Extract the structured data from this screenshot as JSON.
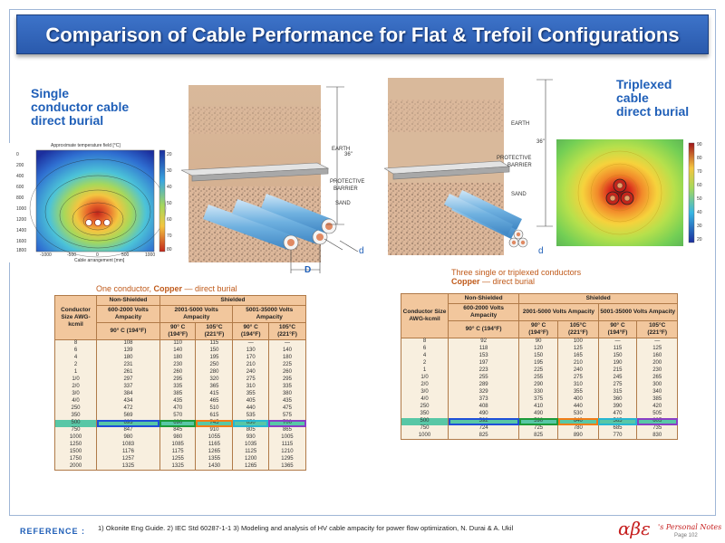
{
  "title": "Comparison of Cable Performance for Flat & Trefoil Configurations",
  "left_heading": [
    "Single",
    "conductor cable",
    "direct burial"
  ],
  "right_heading": [
    "Triplexed",
    "cable",
    "direct burial"
  ],
  "flat_heatmap": {
    "title": "Approximate temperature field [°C]",
    "xlabel": "Cable arrangement [mm]",
    "yticks": [
      "0",
      "200",
      "400",
      "600",
      "800",
      "1000",
      "1200",
      "1400",
      "1600",
      "1800"
    ],
    "xticks": [
      "-1000",
      "-500",
      "0",
      "500",
      "1000"
    ],
    "cbar_ticks": [
      "20",
      "30",
      "40",
      "50",
      "60",
      "70",
      "80"
    ]
  },
  "trefoil_heatmap": {
    "cbar_ticks": [
      "20",
      "30",
      "40",
      "50",
      "60",
      "70",
      "80",
      "90"
    ]
  },
  "flat_diagram": {
    "depth": "36\"",
    "earth": "EARTH",
    "barrier_1": "PROTECTIVE",
    "barrier_2": "BARRIER",
    "sand": "SAND",
    "d_label": "d",
    "D_label": "D"
  },
  "trefoil_diagram": {
    "depth": "36\"",
    "earth": "EARTH",
    "barrier_1": "PROTECTIVE",
    "barrier_2": "BARRIER",
    "sand": "SAND",
    "d_label": "d"
  },
  "left_table": {
    "caption_prefix": "One conductor, ",
    "caption_bold": "Copper",
    "caption_suffix": " — direct burial",
    "h_non_shielded": "Non-Shielded",
    "h_shielded": "Shielded",
    "h_conductor": "Conductor Size AWG-kcmil",
    "h_v1": "600-2000 Volts Ampacity",
    "h_v2": "2001-5000 Volts Ampacity",
    "h_v3": "5001-35000 Volts Ampacity",
    "t90": "90° C (194°F)",
    "t105": "105°C (221°F)",
    "rows": [
      [
        "8",
        "108",
        "110",
        "115",
        "—",
        "—"
      ],
      [
        "6",
        "139",
        "140",
        "150",
        "130",
        "140"
      ],
      [
        "4",
        "180",
        "180",
        "195",
        "170",
        "180"
      ],
      [
        "2",
        "231",
        "230",
        "250",
        "210",
        "225"
      ],
      [
        "1",
        "261",
        "260",
        "280",
        "240",
        "260"
      ],
      [
        "1/0",
        "297",
        "295",
        "320",
        "275",
        "295"
      ],
      [
        "2/0",
        "337",
        "335",
        "365",
        "310",
        "335"
      ],
      [
        "3/0",
        "384",
        "385",
        "415",
        "355",
        "380"
      ],
      [
        "4/0",
        "434",
        "435",
        "465",
        "405",
        "435"
      ],
      [
        "250",
        "472",
        "470",
        "510",
        "440",
        "475"
      ],
      [
        "350",
        "569",
        "570",
        "615",
        "535",
        "575"
      ],
      [
        "500",
        "693",
        "690",
        "745",
        "650",
        "700"
      ],
      [
        "750",
        "847",
        "845",
        "910",
        "805",
        "865"
      ],
      [
        "1000",
        "980",
        "980",
        "1055",
        "930",
        "1005"
      ],
      [
        "1250",
        "1083",
        "1085",
        "1165",
        "1035",
        "1115"
      ],
      [
        "1500",
        "1176",
        "1175",
        "1265",
        "1125",
        "1210"
      ],
      [
        "1750",
        "1257",
        "1255",
        "1355",
        "1200",
        "1295"
      ],
      [
        "2000",
        "1325",
        "1325",
        "1430",
        "1265",
        "1365"
      ]
    ]
  },
  "right_table": {
    "caption_line1": "Three single or triplexed conductors",
    "caption_bold": "Copper",
    "caption_suffix": " — direct burial",
    "h_non_shielded": "Non-Shielded",
    "h_shielded": "Shielded",
    "h_conductor": "Conductor Size AWG-kcmil",
    "h_v1": "600-2000 Volts Ampacity",
    "h_v2": "2001-5000 Volts Ampacity",
    "h_v3": "5001-35000 Volts Ampacity",
    "t90": "90° C (194°F)",
    "t105": "105°C (221°F)",
    "rows": [
      [
        "8",
        "92",
        "90",
        "100",
        "—",
        "—"
      ],
      [
        "6",
        "118",
        "120",
        "125",
        "115",
        "125"
      ],
      [
        "4",
        "153",
        "150",
        "165",
        "150",
        "160"
      ],
      [
        "2",
        "197",
        "195",
        "210",
        "190",
        "200"
      ],
      [
        "1",
        "223",
        "225",
        "240",
        "215",
        "230"
      ],
      [
        "1/0",
        "255",
        "255",
        "275",
        "245",
        "265"
      ],
      [
        "2/0",
        "289",
        "290",
        "310",
        "275",
        "300"
      ],
      [
        "3/0",
        "329",
        "330",
        "355",
        "315",
        "340"
      ],
      [
        "4/0",
        "373",
        "375",
        "400",
        "360",
        "385"
      ],
      [
        "250",
        "408",
        "410",
        "440",
        "390",
        "420"
      ],
      [
        "350",
        "490",
        "490",
        "530",
        "470",
        "505"
      ],
      [
        "500",
        "592",
        "590",
        "640",
        "565",
        "605"
      ],
      [
        "750",
        "724",
        "725",
        "780",
        "685",
        "735"
      ],
      [
        "1000",
        "825",
        "825",
        "890",
        "770",
        "830"
      ]
    ]
  },
  "reference_label": "REFERENCE :",
  "reference_text": "1) Okonite Eng Guide. 2) IEC Std 60287-1-1  3) Modeling and analysis of HV cable ampacity for power flow optimization, N. Durai & A. Ukil",
  "brand_logo": "αβε",
  "brand_text": "'s Personal Notes",
  "page": "Page 102"
}
